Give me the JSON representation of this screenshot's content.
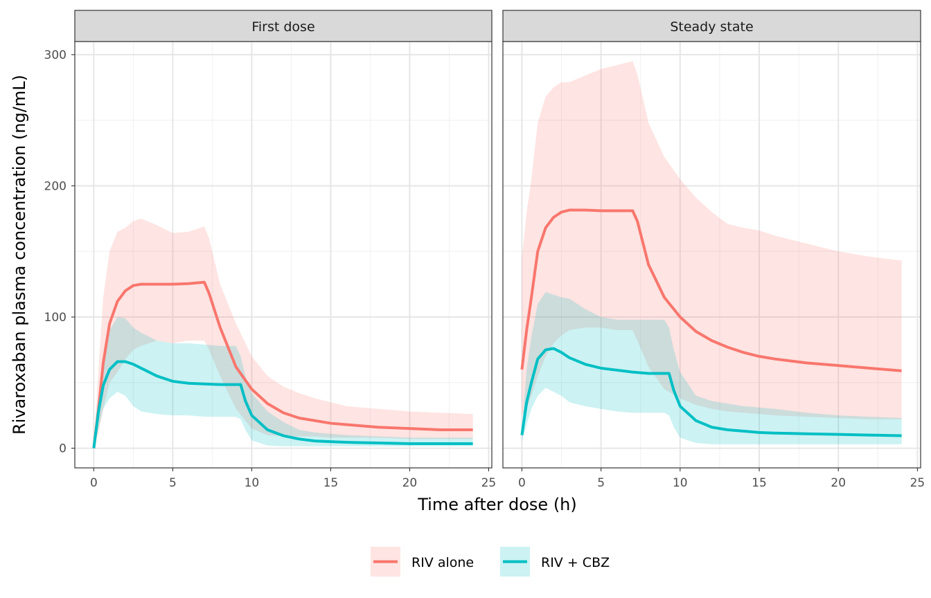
{
  "chart_data": {
    "type": "line",
    "title": "",
    "xlabel": "Time after dose (h)",
    "ylabel": "Rivaroxaban plasma concentration (ng/mL)",
    "xlim": [
      -1.2,
      25.2
    ],
    "ylim": [
      -15,
      310
    ],
    "xticks": [
      0,
      5,
      10,
      15,
      20,
      25
    ],
    "yticks": [
      0,
      100,
      200,
      300
    ],
    "grid": true,
    "legend_position": "bottom",
    "legend": [
      {
        "name": "RIV alone",
        "color": "#F8766D"
      },
      {
        "name": "RIV + CBZ",
        "color": "#00BFC4"
      }
    ],
    "panels": [
      {
        "title": "First dose",
        "series": [
          {
            "name": "RIV alone",
            "color": "#F8766D",
            "x": [
              0,
              0.3,
              0.6,
              1,
              1.5,
              2,
              2.5,
              3,
              4,
              5,
              6,
              7,
              7.3,
              8,
              9,
              10,
              11,
              12,
              13,
              14,
              15,
              16,
              18,
              20,
              22,
              24
            ],
            "y": [
              0,
              30,
              65,
              95,
              112,
              120,
              124,
              125,
              125,
              125,
              125.5,
              126.5,
              118,
              92,
              62,
              45,
              34,
              27,
              23,
              21,
              19,
              18,
              16,
              15,
              14,
              14
            ],
            "lower": [
              0,
              12,
              30,
              50,
              58,
              68,
              75,
              78,
              82,
              80,
              82,
              82,
              75,
              55,
              30,
              15,
              10,
              9,
              9,
              9,
              8,
              8,
              8,
              7,
              7,
              7
            ],
            "upper": [
              0,
              60,
              115,
              150,
              165,
              168,
              173,
              175,
              170,
              164,
              165,
              169,
              160,
              125,
              95,
              70,
              55,
              47,
              42,
              38,
              35,
              32,
              30,
              28,
              27,
              26
            ]
          },
          {
            "name": "RIV + CBZ",
            "color": "#00BFC4",
            "x": [
              0,
              0.3,
              0.6,
              1,
              1.5,
              2,
              2.5,
              3,
              4,
              5,
              6,
              7,
              8,
              9,
              9.3,
              9.6,
              10,
              11,
              12,
              13,
              14,
              15,
              16,
              18,
              20,
              22,
              24
            ],
            "y": [
              0,
              28,
              48,
              60,
              66,
              66,
              64,
              61,
              55,
              51,
              49.5,
              49,
              48.5,
              48.5,
              48.5,
              36,
              25,
              14,
              9.5,
              7,
              5.5,
              5,
              4.5,
              4,
              3.5,
              3.5,
              3.5
            ],
            "lower": [
              0,
              15,
              30,
              38,
              43,
              40,
              32,
              28,
              26,
              25,
              25,
              24,
              24,
              24,
              22,
              14,
              6,
              2,
              1.5,
              1.5,
              1.5,
              1.5,
              1.5,
              1.5,
              1.5,
              1.5,
              1.5
            ],
            "upper": [
              0,
              40,
              70,
              90,
              100,
              99,
              92,
              88,
              82,
              80,
              80,
              79,
              78,
              78,
              70,
              55,
              42,
              28,
              20,
              14,
              12,
              11,
              10,
              9,
              8,
              8,
              8
            ]
          }
        ]
      },
      {
        "title": "Steady state",
        "series": [
          {
            "name": "RIV alone",
            "color": "#F8766D",
            "x": [
              0,
              0.3,
              0.6,
              1,
              1.5,
              2,
              2.5,
              3,
              4,
              5,
              6,
              7,
              7.3,
              8,
              9,
              10,
              11,
              12,
              13,
              14,
              15,
              16,
              18,
              20,
              22,
              24
            ],
            "y": [
              60,
              90,
              115,
              150,
              168,
              176,
              180,
              181.5,
              181.5,
              181,
              181,
              181,
              173,
              140,
              115,
              100,
              89,
              82,
              77,
              73,
              70,
              68,
              65,
              63,
              61,
              59
            ],
            "lower": [
              25,
              30,
              40,
              55,
              70,
              80,
              86,
              90,
              92,
              92,
              90,
              90,
              82,
              62,
              45,
              38,
              33,
              30,
              28,
              27,
              26,
              25,
              24,
              23,
              22,
              22
            ],
            "upper": [
              145,
              180,
              205,
              248,
              268,
              275,
              279,
              279,
              284,
              289,
              292,
              295,
              285,
              248,
              222,
              205,
              191,
              180,
              171,
              168,
              166,
              162,
              156,
              150,
              146,
              143
            ]
          },
          {
            "name": "RIV + CBZ",
            "color": "#00BFC4",
            "x": [
              0,
              0.3,
              0.6,
              1,
              1.5,
              2,
              2.5,
              3,
              4,
              5,
              6,
              7,
              8,
              9,
              9.3,
              9.6,
              10,
              11,
              12,
              13,
              14,
              15,
              16,
              18,
              20,
              22,
              24
            ],
            "y": [
              10,
              35,
              50,
              68,
              75,
              76,
              73,
              69,
              64,
              61,
              59.5,
              58,
              57,
              57,
              57,
              44,
              32,
              21,
              16,
              14,
              13,
              12,
              11.5,
              11,
              10.5,
              10,
              9.5
            ],
            "lower": [
              5,
              18,
              30,
              40,
              46,
              43,
              40,
              35,
              32,
              30,
              28,
              27,
              27,
              27,
              25,
              16,
              8,
              4,
              3,
              3,
              3,
              3,
              3,
              3,
              3,
              3,
              3
            ],
            "upper": [
              15,
              60,
              85,
              110,
              119,
              117,
              115,
              114,
              106,
              100,
              98,
              98,
              98,
              98,
              92,
              75,
              58,
              40,
              36,
              34,
              32,
              31,
              30,
              27,
              25,
              24,
              23
            ]
          }
        ]
      }
    ]
  }
}
